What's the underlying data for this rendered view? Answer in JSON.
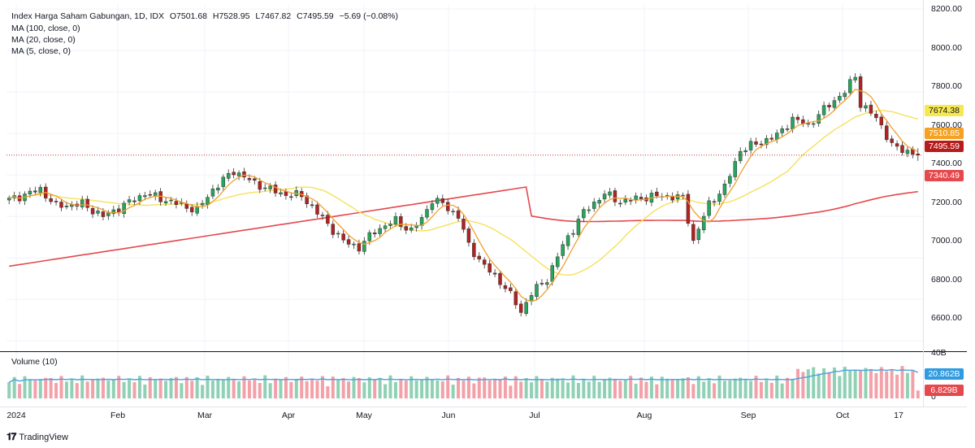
{
  "legend": {
    "symbol": "Index Harga Saham Gabungan, 1D, IDX",
    "open": "O7501.68",
    "high": "H7528.95",
    "low": "L7467.82",
    "close": "C7495.59",
    "change": "−5.69 (−0.08%)",
    "ma100": "MA (100, close, 0)",
    "ma20": "MA (20, close, 0)",
    "ma5": "MA (5, close, 0)",
    "volume": "Volume (10)"
  },
  "badges": {
    "ma20_value": "7674.38",
    "ma5_value": "7510.85",
    "last_price": "7495.59",
    "ma100_value": "7340.49",
    "volume_ma": "20.862B",
    "volume": "6.829B"
  },
  "y_axis": [
    "8200.00",
    "8000.00",
    "7800.00",
    "7600.00",
    "7400.00",
    "7200.00",
    "7000.00",
    "6800.00",
    "6600.00"
  ],
  "volume_axis": [
    "40B",
    "0"
  ],
  "x_axis": [
    "2024",
    "Feb",
    "Mar",
    "Apr",
    "May",
    "Jun",
    "Jul",
    "Aug",
    "Sep",
    "Oct",
    "17"
  ],
  "brand": "TradingView",
  "colors": {
    "up": "#26a65b",
    "down": "#b22222",
    "ma100": "#e5484d",
    "ma20": "#f5e15c",
    "ma5": "#f0a030",
    "vol_ma": "#4aa3df",
    "vol_up": "#8fd1b4",
    "vol_down": "#f4a0a8"
  },
  "chart_data": {
    "type": "candlestick",
    "title": "Index Harga Saham Gabungan, 1D, IDX",
    "ylim": [
      6550,
      8220
    ],
    "x": [
      "2024-01-02",
      "2024-10-11"
    ],
    "series": [
      {
        "name": "MA (100, close, 0)",
        "last": 7340.49
      },
      {
        "name": "MA (20, close, 0)",
        "last": 7674.38
      },
      {
        "name": "MA (5, close, 0)",
        "last": 7510.85
      },
      {
        "name": "Volume (10)",
        "ma_last": "20.862B",
        "last": "6.829B"
      }
    ],
    "last_bar": {
      "open": 7501.68,
      "high": 7528.95,
      "low": 7467.82,
      "close": 7495.59
    },
    "close_path": [
      {
        "x": 0,
        "y": 7280
      },
      {
        "x": 6,
        "y": 7330
      },
      {
        "x": 9,
        "y": 7250
      },
      {
        "x": 14,
        "y": 7260
      },
      {
        "x": 18,
        "y": 7200
      },
      {
        "x": 21,
        "y": 7240
      },
      {
        "x": 26,
        "y": 7310
      },
      {
        "x": 31,
        "y": 7270
      },
      {
        "x": 36,
        "y": 7230
      },
      {
        "x": 39,
        "y": 7330
      },
      {
        "x": 43,
        "y": 7420
      },
      {
        "x": 47,
        "y": 7360
      },
      {
        "x": 52,
        "y": 7310
      },
      {
        "x": 56,
        "y": 7300
      },
      {
        "x": 60,
        "y": 7190
      },
      {
        "x": 64,
        "y": 7080
      },
      {
        "x": 67,
        "y": 7050
      },
      {
        "x": 70,
        "y": 7130
      },
      {
        "x": 74,
        "y": 7180
      },
      {
        "x": 77,
        "y": 7130
      },
      {
        "x": 79,
        "y": 7190
      },
      {
        "x": 81,
        "y": 7280
      },
      {
        "x": 83,
        "y": 7260
      },
      {
        "x": 86,
        "y": 7200
      },
      {
        "x": 88,
        "y": 7060
      },
      {
        "x": 91,
        "y": 6960
      },
      {
        "x": 95,
        "y": 6860
      },
      {
        "x": 98,
        "y": 6740
      },
      {
        "x": 100,
        "y": 6830
      },
      {
        "x": 103,
        "y": 6900
      },
      {
        "x": 106,
        "y": 7060
      },
      {
        "x": 110,
        "y": 7220
      },
      {
        "x": 114,
        "y": 7310
      },
      {
        "x": 117,
        "y": 7270
      },
      {
        "x": 121,
        "y": 7290
      },
      {
        "x": 125,
        "y": 7300
      },
      {
        "x": 129,
        "y": 7290
      },
      {
        "x": 131,
        "y": 7080
      },
      {
        "x": 134,
        "y": 7260
      },
      {
        "x": 137,
        "y": 7340
      },
      {
        "x": 140,
        "y": 7520
      },
      {
        "x": 143,
        "y": 7550
      },
      {
        "x": 147,
        "y": 7590
      },
      {
        "x": 150,
        "y": 7670
      },
      {
        "x": 153,
        "y": 7640
      },
      {
        "x": 157,
        "y": 7740
      },
      {
        "x": 160,
        "y": 7800
      },
      {
        "x": 162,
        "y": 7880
      },
      {
        "x": 163,
        "y": 7740
      },
      {
        "x": 165,
        "y": 7700
      },
      {
        "x": 167,
        "y": 7640
      },
      {
        "x": 169,
        "y": 7540
      },
      {
        "x": 171,
        "y": 7520
      },
      {
        "x": 173,
        "y": 7510
      },
      {
        "x": 174,
        "y": 7495.59
      }
    ]
  }
}
